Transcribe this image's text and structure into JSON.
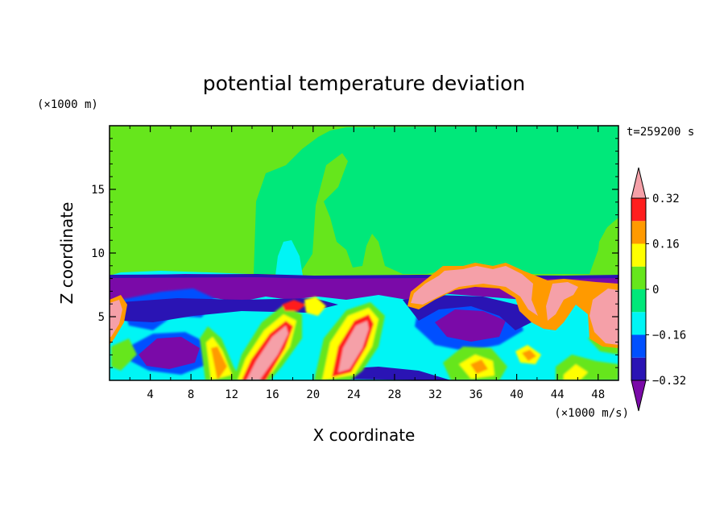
{
  "chart_data": {
    "type": "heatmap",
    "title": "potential temperature deviation",
    "xlabel": "X coordinate",
    "ylabel": "Z coordinate",
    "x_unit": "(×1000 m/s)",
    "y_unit": "(×1000 m)",
    "time_label": "t=259200 s",
    "xlim": [
      0,
      50
    ],
    "ylim": [
      0,
      20
    ],
    "x_ticks": [
      4,
      8,
      12,
      16,
      20,
      24,
      28,
      32,
      36,
      40,
      44,
      48
    ],
    "y_ticks": [
      5,
      10,
      15
    ],
    "colorbar": {
      "levels": [
        -0.4,
        -0.32,
        -0.24,
        -0.16,
        -0.08,
        0,
        0.08,
        0.16,
        0.24,
        0.32,
        0.4
      ],
      "tick_labels": [
        {
          "value": 0.32,
          "label": "0.32"
        },
        {
          "value": 0.16,
          "label": "0.16"
        },
        {
          "value": 0,
          "label": "0"
        },
        {
          "value": -0.16,
          "label": "−0.16"
        },
        {
          "value": -0.32,
          "label": "−0.32"
        }
      ],
      "colors": [
        "#7a0aa8",
        "#2a14b4",
        "#0050ff",
        "#00f5f5",
        "#00e87a",
        "#66e61c",
        "#ffff00",
        "#ff9a00",
        "#ff1e1e",
        "#f5a0a8"
      ],
      "extend": "both"
    }
  }
}
